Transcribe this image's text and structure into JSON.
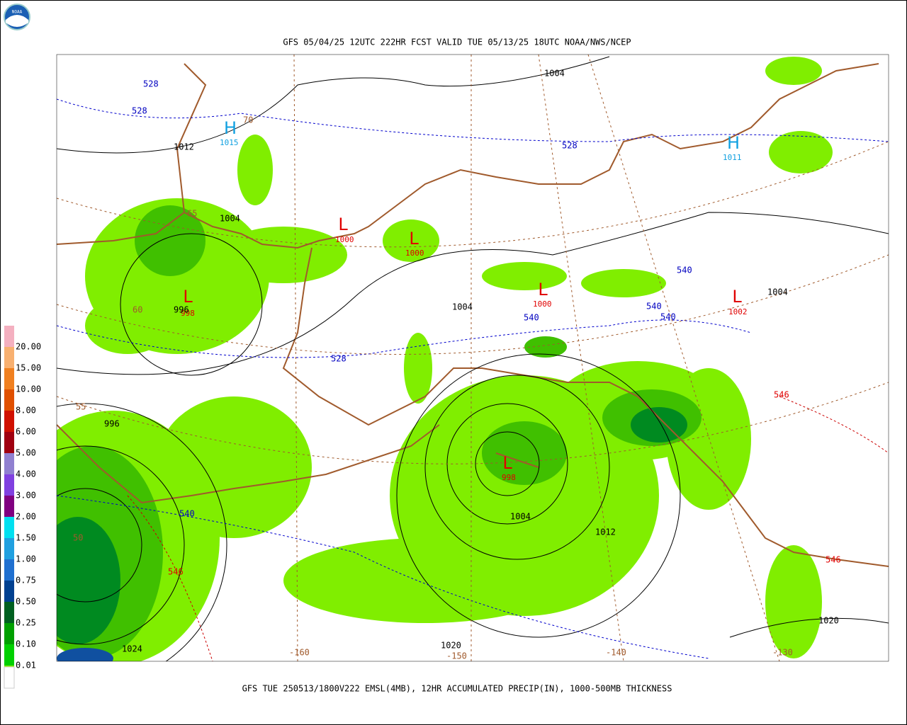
{
  "header": {
    "logo": "NOAA",
    "title": "GFS 05/04/25 12UTC 222HR FCST VALID TUE 05/13/25 18UTC NOAA/NWS/NCEP"
  },
  "footer": {
    "caption": "GFS TUE 250513/1800V222 EMSL(4MB), 12HR ACCUMULATED PRECIP(IN), 1000-500MB THICKNESS"
  },
  "legend": {
    "labels": [
      "20.00",
      "15.00",
      "10.00",
      "8.00",
      "6.00",
      "5.00",
      "4.00",
      "3.00",
      "2.00",
      "1.50",
      "1.00",
      "0.75",
      "0.50",
      "0.25",
      "0.10",
      "0.01"
    ]
  },
  "map": {
    "centers": [
      {
        "symbol": "H",
        "pressure": "1015"
      },
      {
        "symbol": "H",
        "pressure": "1011"
      },
      {
        "symbol": "L",
        "pressure": "998"
      },
      {
        "symbol": "L",
        "pressure": "1000"
      },
      {
        "symbol": "L",
        "pressure": "1000"
      },
      {
        "symbol": "L",
        "pressure": "1000"
      },
      {
        "symbol": "L",
        "pressure": "1002"
      },
      {
        "symbol": "L",
        "pressure": "998"
      }
    ],
    "isobar_labels": [
      "1004",
      "1012",
      "1004",
      "996",
      "1004",
      "1004",
      "996",
      "1004",
      "1012",
      "1020",
      "1020",
      "1024"
    ],
    "thickness_labels": [
      "528",
      "528",
      "528",
      "528",
      "540",
      "540",
      "540",
      "540",
      "540",
      "546",
      "546",
      "546"
    ],
    "latitude_labels": [
      "70",
      "65",
      "60",
      "55",
      "50"
    ],
    "longitude_labels": [
      "-160",
      "-150",
      "-140",
      "-130"
    ]
  }
}
